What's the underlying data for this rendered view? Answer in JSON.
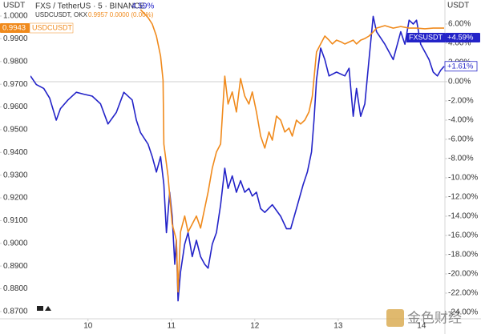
{
  "chart_data": {
    "type": "line",
    "header_title": "FXS / TetherUS · 5 · BINANCE",
    "header_change": "4.59%",
    "subheader_symbol": "USDCUSDT, OKX",
    "subheader_values": "0.9957 0.0000 (0.00%)",
    "y_unit": "USDT",
    "y2_unit": "USDT",
    "price_tags": [
      "0.9943",
      "+4.59%",
      "+1.61%"
    ],
    "watermark": "金色财经",
    "xlim": [
      9.31,
      14.28
    ],
    "xticks": [
      10,
      11,
      12,
      13,
      14
    ],
    "ylim": [
      0.8668,
      1.0053
    ],
    "yticks": [
      {
        "value": 0.87,
        "label": "0.8700"
      },
      {
        "value": 0.88,
        "label": "0.8800"
      },
      {
        "value": 0.89,
        "label": "0.8900"
      },
      {
        "value": 0.9,
        "label": "0.9000"
      },
      {
        "value": 0.91,
        "label": "0.9100"
      },
      {
        "value": 0.92,
        "label": "0.9200"
      },
      {
        "value": 0.93,
        "label": "0.9300"
      },
      {
        "value": 0.94,
        "label": "0.9400"
      },
      {
        "value": 0.95,
        "label": "0.9500"
      },
      {
        "value": 0.96,
        "label": "0.9600"
      },
      {
        "value": 0.97,
        "label": "0.9700"
      },
      {
        "value": 0.98,
        "label": "0.9800"
      },
      {
        "value": 0.99,
        "label": "0.9900"
      },
      {
        "value": 1.0,
        "label": "1.0000"
      }
    ],
    "y2lim": [
      -24.67,
      8.08
    ],
    "y2ticks": [
      {
        "value": 6,
        "label": "6.00%"
      },
      {
        "value": 4,
        "label": "4.00%"
      },
      {
        "value": 2,
        "label": "2.00%"
      },
      {
        "value": 0,
        "label": "0.00%"
      },
      {
        "value": -2,
        "label": "-2.00%"
      },
      {
        "value": -4,
        "label": "-4.00%"
      },
      {
        "value": -6,
        "label": "-6.00%"
      },
      {
        "value": -8,
        "label": "-8.00%"
      },
      {
        "value": -10,
        "label": "-10.00%"
      },
      {
        "value": -12,
        "label": "-12.00%"
      },
      {
        "value": -14,
        "label": "-14.00%"
      },
      {
        "value": -16,
        "label": "-16.00%"
      },
      {
        "value": -18,
        "label": "-18.00%"
      },
      {
        "value": -20,
        "label": "-20.00%"
      },
      {
        "value": -22,
        "label": "-22.00%"
      },
      {
        "value": -24,
        "label": "-24.00%"
      }
    ],
    "grid": false,
    "series": [
      {
        "name": "FXSUSDT",
        "color": "#2323c8",
        "axis": "y2",
        "x": [
          9.31,
          9.38,
          9.47,
          9.54,
          9.62,
          9.67,
          9.76,
          9.86,
          9.95,
          10.05,
          10.15,
          10.24,
          10.34,
          10.43,
          10.53,
          10.58,
          10.63,
          10.72,
          10.77,
          10.82,
          10.87,
          10.91,
          10.94,
          10.98,
          11.01,
          11.04,
          11.06,
          11.08,
          11.11,
          11.16,
          11.2,
          11.25,
          11.3,
          11.35,
          11.4,
          11.44,
          11.49,
          11.54,
          11.59,
          11.64,
          11.68,
          11.73,
          11.78,
          11.83,
          11.88,
          11.93,
          11.97,
          12.02,
          12.07,
          12.12,
          12.21,
          12.31,
          12.38,
          12.43,
          12.5,
          12.58,
          12.63,
          12.68,
          12.71,
          12.74,
          12.79,
          12.84,
          12.89,
          12.98,
          13.08,
          13.13,
          13.18,
          13.22,
          13.27,
          13.32,
          13.37,
          13.42,
          13.46,
          13.56,
          13.66,
          13.75,
          13.8,
          13.85,
          13.9,
          13.94,
          13.99,
          14.04,
          14.09,
          14.14,
          14.19,
          14.23,
          14.27
        ],
        "values": [
          0.6,
          -0.3,
          -0.7,
          -1.7,
          -4.0,
          -2.8,
          -1.9,
          -1.1,
          -1.3,
          -1.5,
          -2.3,
          -4.4,
          -3.2,
          -1.1,
          -1.9,
          -4.0,
          -5.3,
          -6.5,
          -7.8,
          -9.4,
          -7.8,
          -10.7,
          -15.7,
          -11.5,
          -14.0,
          -19.0,
          -16.5,
          -22.8,
          -19.8,
          -16.9,
          -15.7,
          -18.2,
          -16.5,
          -18.2,
          -19.0,
          -19.4,
          -16.9,
          -15.7,
          -12.8,
          -9.0,
          -11.1,
          -9.8,
          -11.5,
          -10.3,
          -11.5,
          -11.1,
          -11.9,
          -11.5,
          -13.2,
          -13.6,
          -12.8,
          -14.0,
          -15.3,
          -15.3,
          -13.2,
          -10.7,
          -9.4,
          -7.3,
          -4.0,
          0.2,
          3.5,
          2.3,
          0.6,
          1.0,
          0.6,
          1.4,
          -3.6,
          -0.7,
          -3.6,
          -2.3,
          2.3,
          6.8,
          5.2,
          3.9,
          2.3,
          5.2,
          3.9,
          6.4,
          6.0,
          6.4,
          3.9,
          3.1,
          2.3,
          1.0,
          0.6,
          1.2,
          1.6
        ]
      },
      {
        "name": "USDCUSDT",
        "color": "#f08a1c",
        "axis": "y",
        "x": [
          10.63,
          10.72,
          10.77,
          10.82,
          10.87,
          10.9,
          10.91,
          10.96,
          11.01,
          11.06,
          11.08,
          11.11,
          11.16,
          11.2,
          11.25,
          11.3,
          11.35,
          11.4,
          11.44,
          11.49,
          11.54,
          11.59,
          11.64,
          11.68,
          11.73,
          11.78,
          11.83,
          11.88,
          11.93,
          11.97,
          12.02,
          12.07,
          12.12,
          12.17,
          12.21,
          12.26,
          12.31,
          12.36,
          12.41,
          12.45,
          12.5,
          12.55,
          12.6,
          12.65,
          12.69,
          12.74,
          12.79,
          12.84,
          12.89,
          12.93,
          12.98,
          13.03,
          13.08,
          13.18,
          13.22,
          13.27,
          13.32,
          13.37,
          13.42,
          13.46,
          13.56,
          13.66,
          13.75,
          13.85,
          13.94,
          14.04,
          14.14,
          14.27
        ],
        "values": [
          1.0028,
          0.9993,
          0.9965,
          0.9912,
          0.9824,
          0.9718,
          0.9437,
          0.9296,
          0.9085,
          0.9014,
          0.8786,
          0.905,
          0.912,
          0.905,
          0.9085,
          0.912,
          0.9067,
          0.9155,
          0.9226,
          0.9331,
          0.9402,
          0.9437,
          0.9736,
          0.9613,
          0.9666,
          0.9578,
          0.9725,
          0.9648,
          0.9613,
          0.9666,
          0.9578,
          0.9472,
          0.9419,
          0.949,
          0.9454,
          0.956,
          0.9542,
          0.949,
          0.9507,
          0.9472,
          0.9542,
          0.9525,
          0.9542,
          0.9578,
          0.9648,
          0.9842,
          0.9877,
          0.9912,
          0.9894,
          0.9877,
          0.9894,
          0.9887,
          0.9877,
          0.9894,
          0.9877,
          0.9894,
          0.9901,
          0.9912,
          0.993,
          0.9947,
          0.9958,
          0.9947,
          0.9954,
          0.9947,
          0.9947,
          0.9944,
          0.9947,
          0.9947
        ]
      }
    ]
  }
}
